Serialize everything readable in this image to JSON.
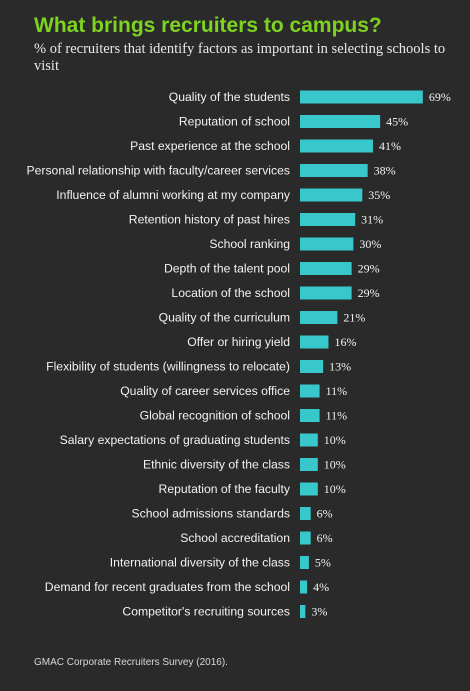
{
  "header": {
    "title": "What brings recruiters to campus?",
    "subtitle": "% of recruiters that identify factors as important in selecting schools to visit"
  },
  "footer": {
    "source": "GMAC Corporate Recruiters Survey (2016)."
  },
  "colors": {
    "background": "#2a2a2a",
    "title": "#7ed321",
    "bar": "#38c8cc",
    "text": "#f2f2f2"
  },
  "chart_data": {
    "type": "bar",
    "orientation": "horizontal",
    "title": "What brings recruiters to campus?",
    "subtitle": "% of recruiters that identify factors as important in selecting schools to visit",
    "value_suffix": "%",
    "categories": [
      "Quality of the students",
      "Reputation of school",
      "Past experience at the school",
      "Personal relationship with faculty/career services",
      "Influence of alumni working at my company",
      "Retention history of past hires",
      "School ranking",
      "Depth of the talent pool",
      "Location of the school",
      "Quality of the curriculum",
      "Offer or hiring yield",
      "Flexibility of students (willingness to relocate)",
      "Quality of career services office",
      "Global recognition of school",
      "Salary expectations of graduating students",
      "Ethnic diversity of the class",
      "Reputation of the faculty",
      "School admissions standards",
      "School accreditation",
      "International diversity of the class",
      "Demand for recent graduates from the school",
      "Competitor's recruiting sources"
    ],
    "values": [
      69,
      45,
      41,
      38,
      35,
      31,
      30,
      29,
      29,
      21,
      16,
      13,
      11,
      11,
      10,
      10,
      10,
      6,
      6,
      5,
      4,
      3
    ],
    "grid": false,
    "legend": "none"
  }
}
